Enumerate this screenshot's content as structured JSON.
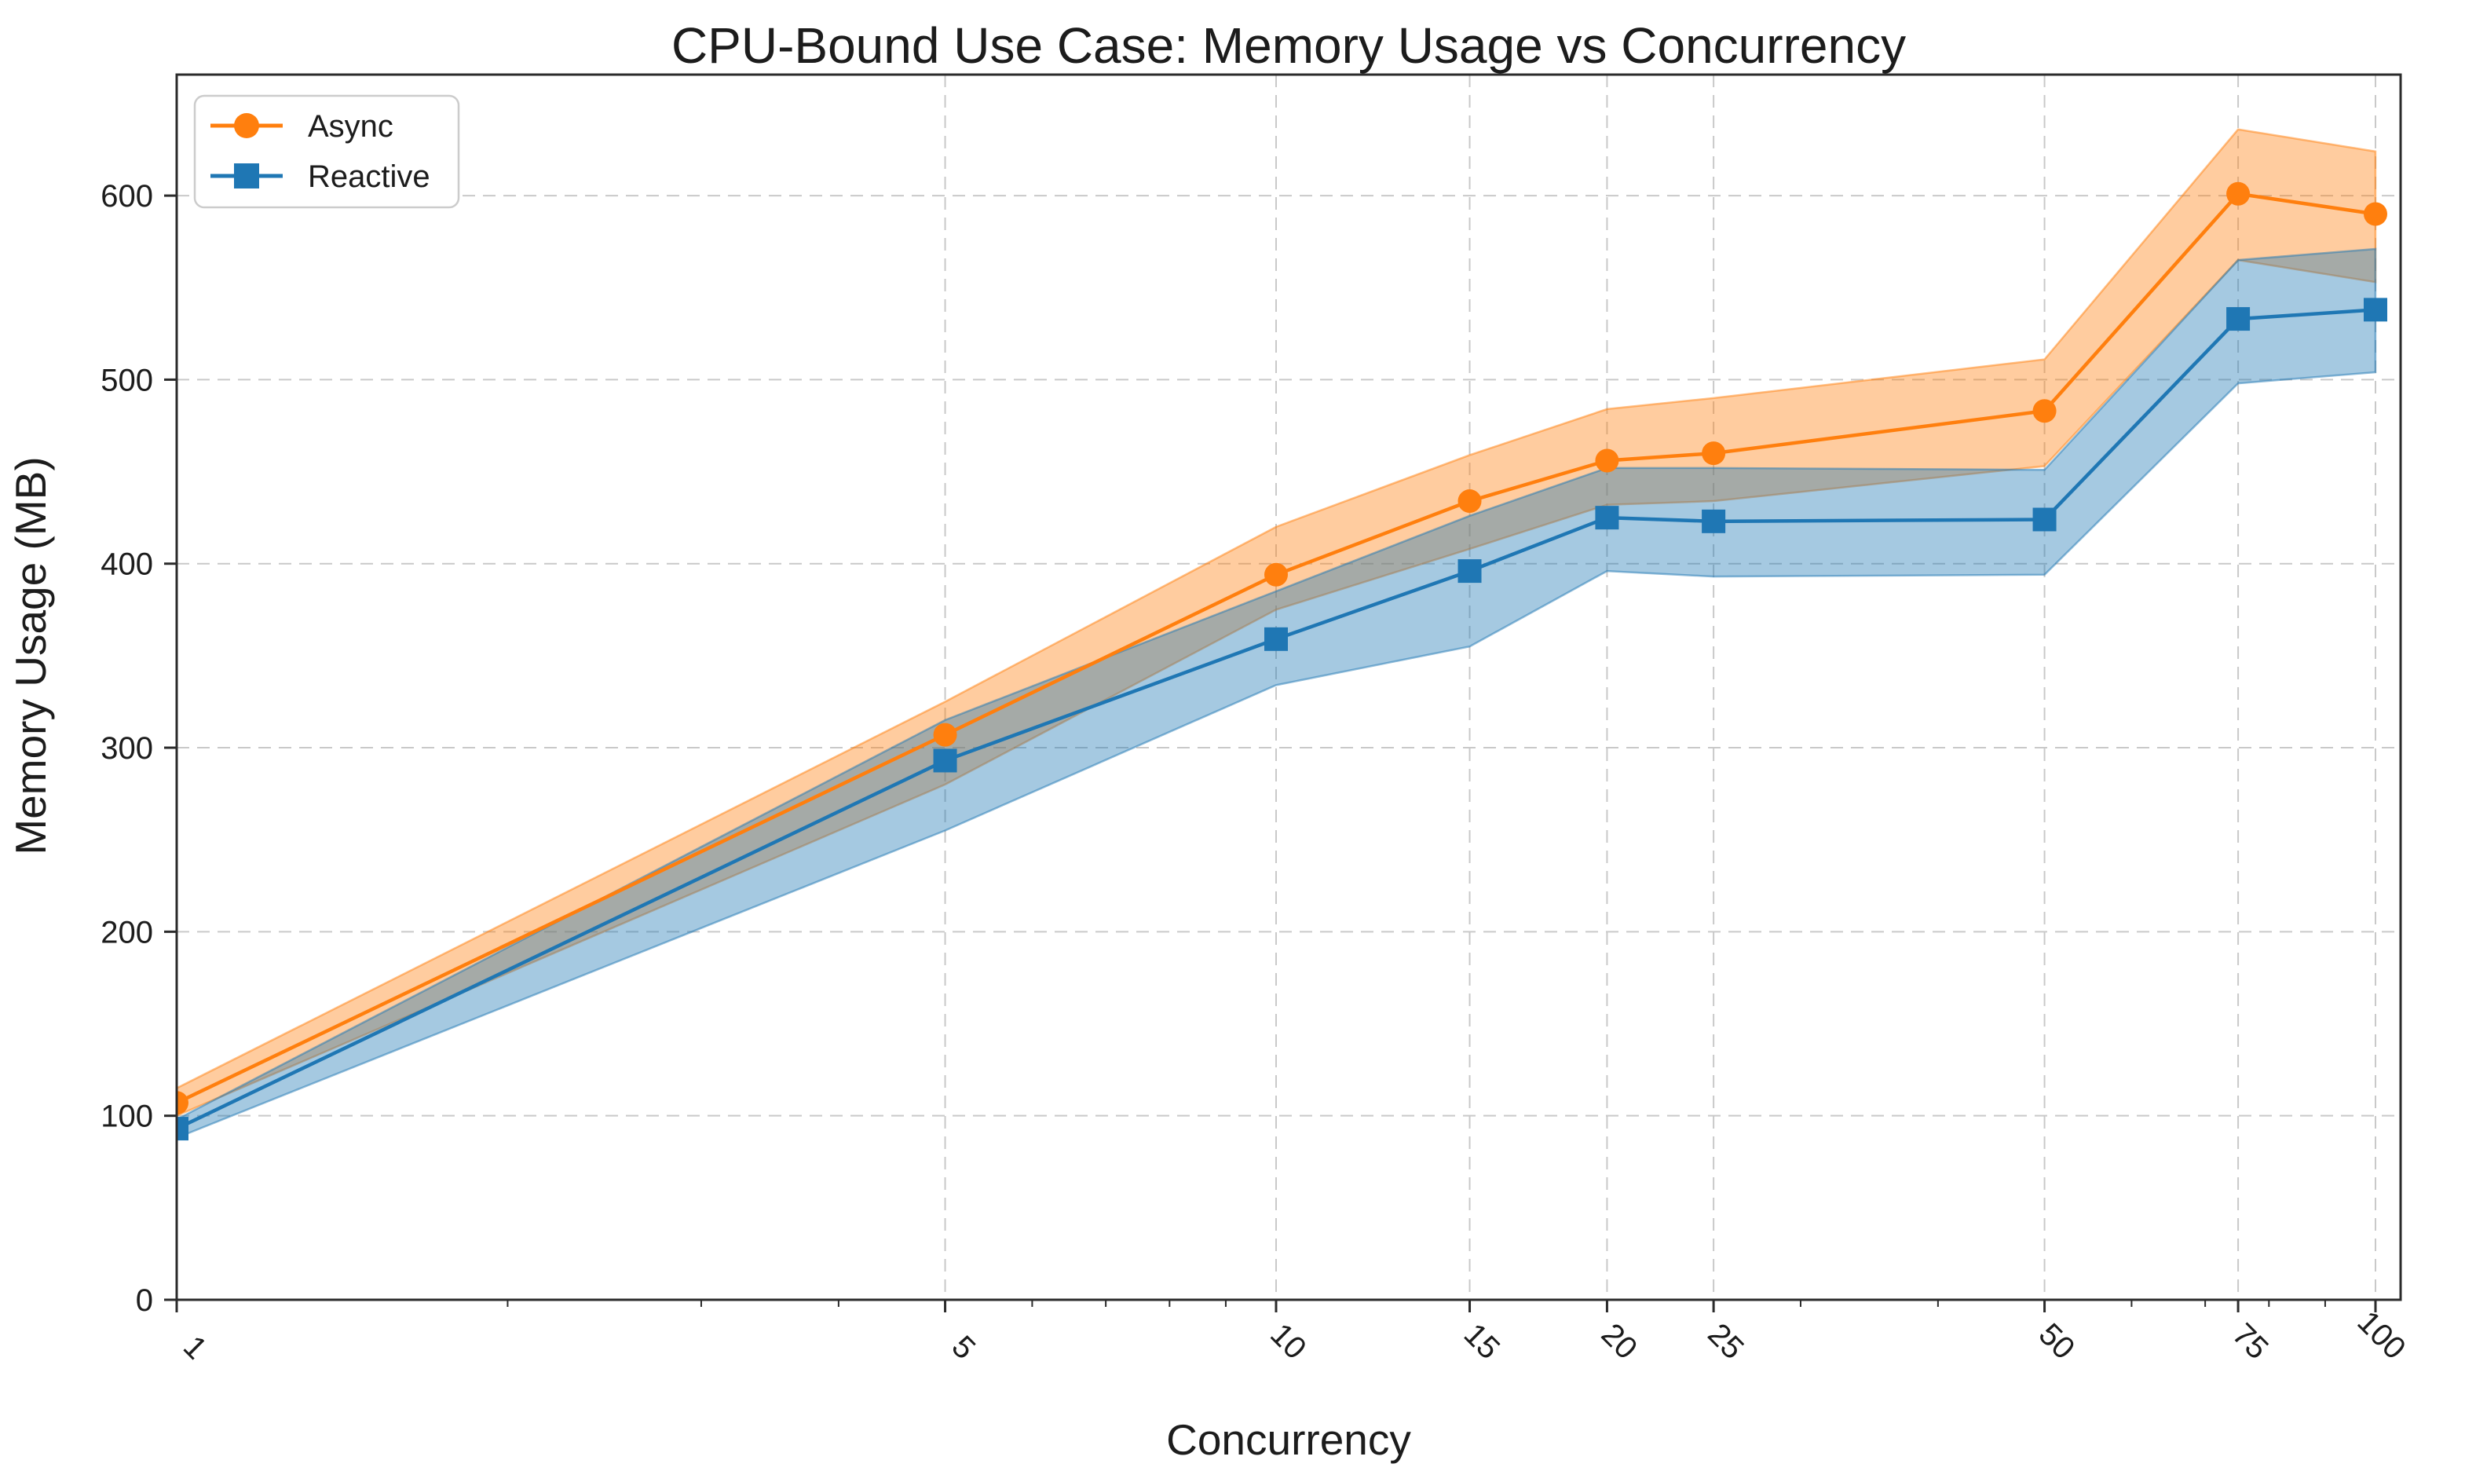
{
  "chart_data": {
    "type": "line",
    "title": "CPU-Bound Use Case: Memory Usage vs Concurrency",
    "xlabel": "Concurrency",
    "ylabel": "Memory Usage (MB)",
    "x_scale": "log",
    "grid": "dashed-major-both-axes",
    "legend_position": "upper-left",
    "x": [
      1,
      5,
      10,
      15,
      20,
      25,
      50,
      75,
      100
    ],
    "x_tick_labels": [
      "1",
      "5",
      "10",
      "15",
      "20",
      "25",
      "50",
      "75",
      "100"
    ],
    "x_minor_ticks": [
      2,
      3,
      4,
      6,
      7,
      8,
      9,
      30,
      40,
      60,
      70,
      80,
      90
    ],
    "y_ticks": [
      0,
      100,
      200,
      300,
      400,
      500,
      600
    ],
    "y_tick_labels": [
      "0",
      "100",
      "200",
      "300",
      "400",
      "500",
      "600"
    ],
    "xlim": [
      1,
      105
    ],
    "ylim": [
      0,
      666
    ],
    "series": [
      {
        "name": "Async",
        "color": "#ff7f0e",
        "marker": "circle",
        "values": [
          107,
          307,
          394,
          434,
          456,
          460,
          483,
          601,
          590
        ],
        "band_upper": [
          115,
          325,
          420,
          459,
          484,
          490,
          511,
          636,
          624
        ],
        "band_lower": [
          100,
          280,
          375,
          408,
          432,
          434,
          453,
          565,
          553
        ]
      },
      {
        "name": "Reactive",
        "color": "#1f77b4",
        "marker": "square",
        "values": [
          93,
          293,
          359,
          396,
          425,
          423,
          424,
          533,
          538
        ],
        "band_upper": [
          98,
          315,
          385,
          426,
          452,
          452,
          451,
          565,
          571
        ],
        "band_lower": [
          88,
          255,
          334,
          355,
          396,
          393,
          394,
          498,
          504
        ]
      }
    ],
    "colors": {
      "grid": "#c9c9c9",
      "spine": "#2b2b2b",
      "text": "#1c1c1c",
      "background": "#ffffff"
    },
    "band_opacity": 0.4
  }
}
